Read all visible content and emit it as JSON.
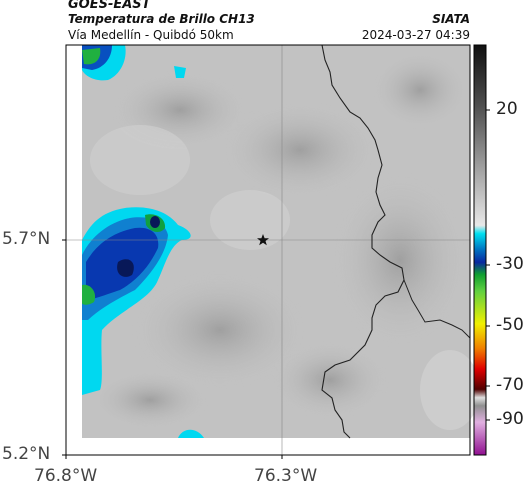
{
  "header": {
    "satellite": "GOES-EAST",
    "product": "Temperatura de Brillo CH13",
    "region": "Vía Medellín - Quibdó 50km",
    "organization": "SIATA",
    "datetime": "2024-03-27 04:39"
  },
  "map": {
    "lat_ticks": [
      "5.7°N",
      "5.2°N"
    ],
    "lon_ticks": [
      "76.8°W",
      "76.3°W"
    ],
    "marker": "star",
    "gridlines": true
  },
  "colorbar": {
    "tick_labels": [
      "20",
      "-30",
      "-50",
      "-70",
      "-90"
    ],
    "colors": {
      "warm": "#d8d8d8",
      "cyan": "#00d8f0",
      "blue": "#0838b8",
      "green": "#20c040",
      "yellow": "#f0f000",
      "red": "#e00000",
      "magenta": "#c040c0"
    }
  },
  "colors": {
    "background": "#ffffff",
    "cloud_gray": "#bcbcbc",
    "border_line": "#222222"
  }
}
